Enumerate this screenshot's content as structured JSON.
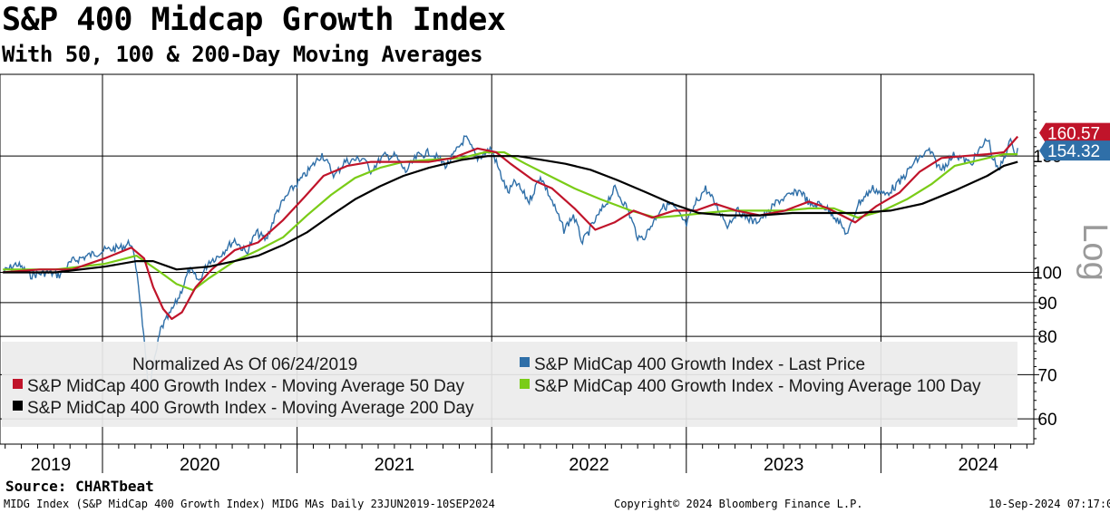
{
  "header": {
    "title": "S&P 400 Midcap Growth Index",
    "subtitle": "With 50, 100 & 200-Day Moving Averages"
  },
  "footer": {
    "source": "Source: CHARTbeat",
    "ticker_line": "MIDG Index (S&P MidCap 400 Growth Index) MIDG MAs  Daily 23JUN2019-10SEP2024",
    "copyright": "Copyright© 2024 Bloomberg Finance L.P.",
    "timestamp": "10-Sep-2024 07:17:03"
  },
  "chart_data": {
    "type": "line",
    "title": "S&P 400 Midcap Growth Index",
    "subtitle": "With 50, 100 & 200-Day Moving Averages",
    "y_scale": "log",
    "y_scale_label": "Log",
    "ylim": [
      56,
      178
    ],
    "xlim": [
      "2019-01-01",
      "2024-12-31"
    ],
    "y_ticks": [
      60,
      70,
      80,
      90,
      100,
      150
    ],
    "x_labels": [
      "2019",
      "2020",
      "2021",
      "2022",
      "2023",
      "2024"
    ],
    "grid": true,
    "legend_placement": "bottom",
    "legend_note": "Normalized As Of 06/24/2019",
    "last_values": [
      {
        "series": "S&P MidCap 400 Growth Index - Moving Average 50 Day",
        "label": "160.57",
        "value": 160.57
      },
      {
        "series": "S&P MidCap 400 Growth Index - Last Price",
        "label": "154.32",
        "value": 154.32
      }
    ],
    "series": [
      {
        "name": "S&P MidCap 400 Growth Index - Last Price",
        "color": "#2f6fa8",
        "points": [
          [
            "2019-06-24",
            100
          ],
          [
            "2019-07-20",
            103
          ],
          [
            "2019-08-15",
            99
          ],
          [
            "2019-09-15",
            100
          ],
          [
            "2019-10-08",
            99
          ],
          [
            "2019-11-01",
            104
          ],
          [
            "2019-12-01",
            106
          ],
          [
            "2020-01-01",
            108
          ],
          [
            "2020-02-01",
            109
          ],
          [
            "2020-02-19",
            111
          ],
          [
            "2020-03-02",
            100
          ],
          [
            "2020-03-12",
            84
          ],
          [
            "2020-03-23",
            66
          ],
          [
            "2020-04-06",
            75
          ],
          [
            "2020-04-15",
            82
          ],
          [
            "2020-05-01",
            86
          ],
          [
            "2020-05-20",
            92
          ],
          [
            "2020-06-08",
            101
          ],
          [
            "2020-06-26",
            97
          ],
          [
            "2020-07-15",
            104
          ],
          [
            "2020-08-03",
            106
          ],
          [
            "2020-09-01",
            112
          ],
          [
            "2020-09-23",
            107
          ],
          [
            "2020-10-12",
            115
          ],
          [
            "2020-10-30",
            112
          ],
          [
            "2020-11-20",
            124
          ],
          [
            "2020-12-15",
            133
          ],
          [
            "2021-01-10",
            140
          ],
          [
            "2021-02-12",
            151
          ],
          [
            "2021-03-08",
            140
          ],
          [
            "2021-03-26",
            147
          ],
          [
            "2021-05-03",
            149
          ],
          [
            "2021-05-12",
            142
          ],
          [
            "2021-06-08",
            150
          ],
          [
            "2021-06-30",
            150
          ],
          [
            "2021-07-19",
            142
          ],
          [
            "2021-08-10",
            150
          ],
          [
            "2021-09-03",
            152
          ],
          [
            "2021-10-04",
            145
          ],
          [
            "2021-11-08",
            160
          ],
          [
            "2021-12-01",
            149
          ],
          [
            "2021-12-27",
            154
          ],
          [
            "2022-01-10",
            143
          ],
          [
            "2022-01-27",
            132
          ],
          [
            "2022-02-10",
            137
          ],
          [
            "2022-03-08",
            128
          ],
          [
            "2022-03-29",
            140
          ],
          [
            "2022-04-20",
            128
          ],
          [
            "2022-05-12",
            116
          ],
          [
            "2022-05-30",
            122
          ],
          [
            "2022-06-16",
            111
          ],
          [
            "2022-07-05",
            118
          ],
          [
            "2022-08-16",
            134
          ],
          [
            "2022-09-08",
            125
          ],
          [
            "2022-09-30",
            112
          ],
          [
            "2022-10-13",
            114
          ],
          [
            "2022-11-10",
            125
          ],
          [
            "2022-11-30",
            127
          ],
          [
            "2022-12-28",
            118
          ],
          [
            "2023-01-16",
            128
          ],
          [
            "2023-02-02",
            134
          ],
          [
            "2023-02-23",
            126
          ],
          [
            "2023-03-15",
            118
          ],
          [
            "2023-04-04",
            124
          ],
          [
            "2023-05-04",
            119
          ],
          [
            "2023-05-31",
            123
          ],
          [
            "2023-06-16",
            128
          ],
          [
            "2023-07-31",
            133
          ],
          [
            "2023-08-18",
            126
          ],
          [
            "2023-09-05",
            127
          ],
          [
            "2023-09-28",
            123
          ],
          [
            "2023-10-27",
            114
          ],
          [
            "2023-11-15",
            127
          ],
          [
            "2023-12-13",
            134
          ],
          [
            "2024-01-05",
            131
          ],
          [
            "2024-02-02",
            137
          ],
          [
            "2024-03-01",
            147
          ],
          [
            "2024-03-28",
            153
          ],
          [
            "2024-04-18",
            143
          ],
          [
            "2024-05-15",
            151
          ],
          [
            "2024-06-14",
            146
          ],
          [
            "2024-07-16",
            160
          ],
          [
            "2024-07-24",
            150
          ],
          [
            "2024-08-05",
            142
          ],
          [
            "2024-08-20",
            153
          ],
          [
            "2024-08-30",
            159
          ],
          [
            "2024-09-06",
            150
          ],
          [
            "2024-09-10",
            154.32
          ]
        ]
      },
      {
        "name": "S&P MidCap 400 Growth Index - Moving Average 50 Day",
        "color": "#c0142a",
        "points": [
          [
            "2019-06-24",
            100
          ],
          [
            "2019-09-01",
            101
          ],
          [
            "2019-11-01",
            101
          ],
          [
            "2020-01-01",
            105
          ],
          [
            "2020-02-20",
            109
          ],
          [
            "2020-03-15",
            105
          ],
          [
            "2020-04-01",
            95
          ],
          [
            "2020-04-20",
            88
          ],
          [
            "2020-05-06",
            85
          ],
          [
            "2020-05-25",
            87
          ],
          [
            "2020-06-20",
            95
          ],
          [
            "2020-07-20",
            101
          ],
          [
            "2020-09-01",
            108
          ],
          [
            "2020-10-15",
            111
          ],
          [
            "2020-12-01",
            120
          ],
          [
            "2021-01-10",
            130
          ],
          [
            "2021-02-15",
            140
          ],
          [
            "2021-04-01",
            145
          ],
          [
            "2021-05-15",
            147
          ],
          [
            "2021-07-15",
            147
          ],
          [
            "2021-09-01",
            147
          ],
          [
            "2021-10-15",
            149
          ],
          [
            "2021-12-01",
            154
          ],
          [
            "2022-01-05",
            152
          ],
          [
            "2022-02-01",
            146
          ],
          [
            "2022-03-15",
            138
          ],
          [
            "2022-04-20",
            134
          ],
          [
            "2022-06-01",
            125
          ],
          [
            "2022-07-10",
            116
          ],
          [
            "2022-08-15",
            119
          ],
          [
            "2022-09-20",
            124
          ],
          [
            "2022-10-25",
            121
          ],
          [
            "2022-12-05",
            124
          ],
          [
            "2023-01-15",
            124
          ],
          [
            "2023-02-20",
            127
          ],
          [
            "2023-04-01",
            124
          ],
          [
            "2023-05-15",
            122
          ],
          [
            "2023-07-01",
            124
          ],
          [
            "2023-08-15",
            128
          ],
          [
            "2023-09-20",
            125
          ],
          [
            "2023-11-10",
            119
          ],
          [
            "2023-12-20",
            126
          ],
          [
            "2024-02-01",
            132
          ],
          [
            "2024-03-10",
            142
          ],
          [
            "2024-04-20",
            149
          ],
          [
            "2024-06-01",
            150
          ],
          [
            "2024-07-15",
            151
          ],
          [
            "2024-08-15",
            152
          ],
          [
            "2024-09-10",
            160.57
          ]
        ]
      },
      {
        "name": "S&P MidCap 400 Growth Index - Moving Average 100 Day",
        "color": "#7acc17",
        "points": [
          [
            "2019-06-24",
            101
          ],
          [
            "2019-10-01",
            101
          ],
          [
            "2020-01-01",
            103
          ],
          [
            "2020-03-01",
            106
          ],
          [
            "2020-04-15",
            100
          ],
          [
            "2020-05-15",
            96
          ],
          [
            "2020-06-15",
            94
          ],
          [
            "2020-07-15",
            98
          ],
          [
            "2020-09-01",
            104
          ],
          [
            "2020-10-15",
            108
          ],
          [
            "2020-12-01",
            113
          ],
          [
            "2021-01-15",
            122
          ],
          [
            "2021-03-01",
            131
          ],
          [
            "2021-04-15",
            139
          ],
          [
            "2021-06-01",
            144
          ],
          [
            "2021-07-15",
            147
          ],
          [
            "2021-09-01",
            148
          ],
          [
            "2021-11-01",
            149
          ],
          [
            "2021-12-15",
            152
          ],
          [
            "2022-01-20",
            152
          ],
          [
            "2022-03-01",
            146
          ],
          [
            "2022-04-15",
            140
          ],
          [
            "2022-06-01",
            134
          ],
          [
            "2022-07-20",
            129
          ],
          [
            "2022-09-15",
            124
          ],
          [
            "2022-11-01",
            121
          ],
          [
            "2022-12-20",
            122
          ],
          [
            "2023-02-01",
            123
          ],
          [
            "2023-03-20",
            124
          ],
          [
            "2023-05-15",
            124
          ],
          [
            "2023-07-01",
            124
          ],
          [
            "2023-08-15",
            125
          ],
          [
            "2023-10-01",
            125
          ],
          [
            "2023-11-15",
            121
          ],
          [
            "2024-01-01",
            124
          ],
          [
            "2024-02-15",
            129
          ],
          [
            "2024-04-01",
            136
          ],
          [
            "2024-05-15",
            145
          ],
          [
            "2024-07-01",
            148
          ],
          [
            "2024-08-15",
            151
          ],
          [
            "2024-09-10",
            151
          ]
        ]
      },
      {
        "name": "S&P MidCap 400 Growth Index - Moving Average 200 Day",
        "color": "#000000",
        "points": [
          [
            "2019-06-24",
            100
          ],
          [
            "2019-10-01",
            100
          ],
          [
            "2020-01-01",
            102
          ],
          [
            "2020-03-01",
            104
          ],
          [
            "2020-04-01",
            104
          ],
          [
            "2020-05-15",
            101
          ],
          [
            "2020-07-15",
            102
          ],
          [
            "2020-09-01",
            104
          ],
          [
            "2020-10-15",
            106
          ],
          [
            "2020-12-01",
            110
          ],
          [
            "2021-01-15",
            115
          ],
          [
            "2021-03-01",
            122
          ],
          [
            "2021-04-15",
            129
          ],
          [
            "2021-06-01",
            135
          ],
          [
            "2021-07-15",
            140
          ],
          [
            "2021-09-01",
            144
          ],
          [
            "2021-11-01",
            148
          ],
          [
            "2021-12-20",
            150
          ],
          [
            "2022-02-15",
            150
          ],
          [
            "2022-04-01",
            148
          ],
          [
            "2022-05-15",
            146
          ],
          [
            "2022-07-01",
            143
          ],
          [
            "2022-08-20",
            138
          ],
          [
            "2022-10-15",
            132
          ],
          [
            "2022-12-01",
            127
          ],
          [
            "2023-01-20",
            123
          ],
          [
            "2023-03-15",
            122
          ],
          [
            "2023-05-15",
            122
          ],
          [
            "2023-07-15",
            123
          ],
          [
            "2023-09-15",
            123
          ],
          [
            "2023-11-15",
            123
          ],
          [
            "2024-01-15",
            124
          ],
          [
            "2024-03-15",
            127
          ],
          [
            "2024-05-15",
            133
          ],
          [
            "2024-07-15",
            140
          ],
          [
            "2024-08-15",
            145
          ],
          [
            "2024-09-10",
            147
          ]
        ]
      }
    ]
  }
}
